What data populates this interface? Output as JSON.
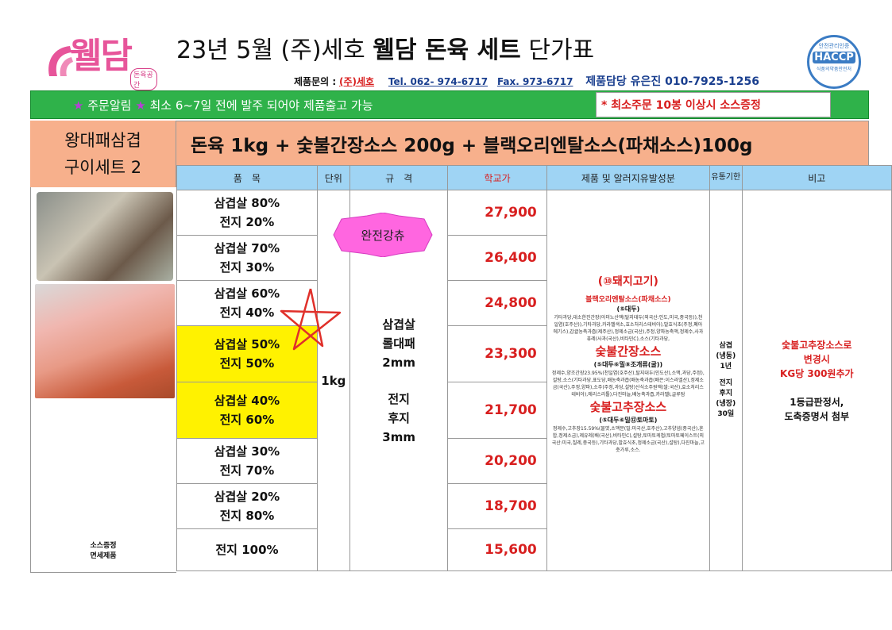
{
  "header": {
    "logo_text": "웰담",
    "logo_sub": "돈육공간",
    "title_prefix": "23년 5월 (주)세호",
    "title_bold": "웰담 돈육 세트",
    "title_suffix": "단가표",
    "haccp": {
      "top": "안전관리인증",
      "main": "HACCP",
      "bottom": "식품의약품안전처"
    },
    "contact_label": "제품문의 :",
    "company": "(주)세호",
    "tel": "Tel. 062- 974-6717",
    "fax": "Fax. 973-6717",
    "manager": "제품담당 유은진 010-7925-1256"
  },
  "notice": {
    "star": "★",
    "label": "주문알림",
    "text": "최소 6~7일 전에 발주 되어야 제품출고 가능",
    "min_order": "* 최소주문 10봉 이상시 소스증정"
  },
  "set": {
    "name_line1": "왕대패삼겹",
    "name_line2": "구이세트 2",
    "description": "돈육 1kg + 숯불간장소스 200g + 블랙오리엔탈소스(파채소스)100g"
  },
  "columns": {
    "item": "품　목",
    "unit": "단위",
    "spec": "규　격",
    "price": "학교가",
    "allergy": "제품 및 알러지유발성분",
    "shelf": "유통기한",
    "note": "비고"
  },
  "rows": [
    {
      "l1": "삼겹살 80%",
      "l2": "전지 20%",
      "price": "27,900"
    },
    {
      "l1": "삼겹살 70%",
      "l2": "전지 30%",
      "price": "26,400"
    },
    {
      "l1": "삼겹살 60%",
      "l2": "전지 40%",
      "price": "24,800"
    },
    {
      "l1": "삼겹살 50%",
      "l2": "전지 50%",
      "price": "23,300"
    },
    {
      "l1": "삼겹살 40%",
      "l2": "전지 60%",
      "price": "21,700"
    },
    {
      "l1": "삼겹살 30%",
      "l2": "전지 70%",
      "price": "20,200"
    },
    {
      "l1": "삼겹살 20%",
      "l2": "전지 80%",
      "price": "18,700"
    },
    {
      "l1": "전지 100%",
      "l2": "",
      "price": "15,600"
    }
  ],
  "unit": "1kg",
  "spec": {
    "l1": "삼겹살",
    "l2": "롤대패",
    "l3": "2mm",
    "l4": "전지",
    "l5": "후지",
    "l6": "3mm"
  },
  "badge": "완전강츄",
  "allergy": {
    "pork": "(⑩돼지고기)",
    "black_sauce": "블랙오리엔탈소스(파채소스)",
    "black_sub": "(⑤대두)",
    "black_txt": "기타과당,대소한진간장(아미노산액(탈지대두(외국산:인도,미국,중국등)),천일염(호주산)),기타과당,카라멜색소,효소처리스테비아),발효식초(주정,폐아에기스),감귤농축과즙(제주산),정제소금(국산),주정,양파농축액,정제수,사과퓨레(사과(국산),비타민C),소스(기타과당,",
    "soy_sauce": "숯불간장소스",
    "soy_sub": "(⑤대두⑥밀⑧조개류(굴))",
    "soy_txt": "정제수,양조간장23.95%(천일염(호주산),탈지대두(인도산),소맥,과당,주정),설탕,소스(기타과당,표도당,배농축과즙(배농축과즙(배은:이스라엘산),정제소금(국산),주정,양파),소주(주정,과당,설탕)산식소주원액(쌀:국산),효소처리스테비아),에리스리톨),다진마늘,배농축과즙,카라멜I,글루탐",
    "gochujang": "숯불고추장소스",
    "gochu_sub": "(⑤대두⑥밀⑫토마토)",
    "gochu_txt": "정제수,고추장15.59%(물엿,소맥분(밀:미국산,호주산),고추양념(중국산),혼합,정제소금),제유레(배(국산),비타민C),설탕,토마토케첩(토마토페이스트(외국산:미국,칠레,중국등),기타과당,발효식초,정제소금(국산),설탕),다진마늘,고춧가루,소스."
  },
  "shelf_life": {
    "l1": "삼겹",
    "l2": "(냉동)",
    "l3": "1년",
    "l4": "전지",
    "l5": "후지",
    "l6": "(냉장)",
    "l7": "30일"
  },
  "note": {
    "r1": "숯불고추장소스로",
    "r2": "변경시",
    "r3": "KG당 300원추가",
    "k1": "1등급판정서,",
    "k2": "도축증명서 첨부"
  },
  "free_note": {
    "l1": "소스증정",
    "l2": "면세제품"
  },
  "colors": {
    "green_bar": "#2fb24a",
    "header_orange": "#f7b08c",
    "col_header_blue": "#9fd4f4",
    "highlight_yellow": "#fff200",
    "price_red": "#d81f1f",
    "badge_pink": "#ff66e0"
  }
}
